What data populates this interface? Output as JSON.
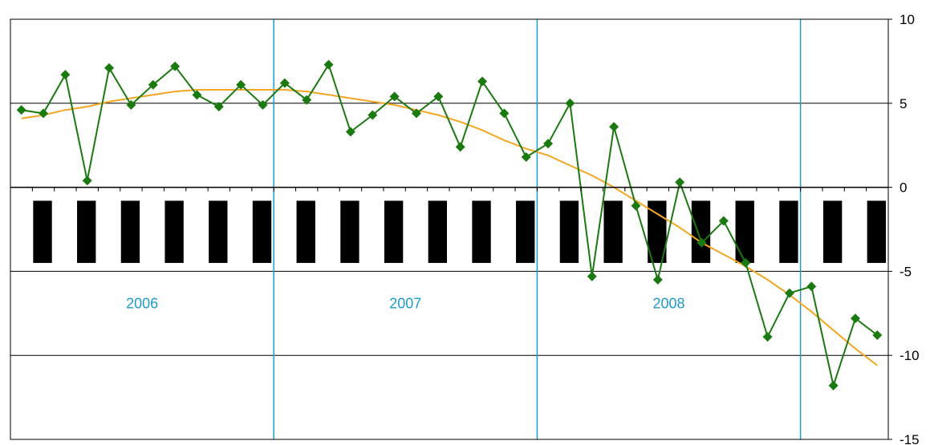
{
  "colors": {
    "background": "#ffffff",
    "border": "#000000",
    "gridline": "#000000",
    "year_divider": "#1f9bc9",
    "year_label": "#1f9bc9",
    "series_main": "#1a7a0f",
    "series_trend": "#f5a623",
    "band": "#000000"
  },
  "chart_data": {
    "type": "line",
    "title": "",
    "xlabel": "",
    "ylabel": "",
    "ylim": [
      -15,
      10
    ],
    "y_ticks": [
      "10",
      "5",
      "0",
      "-5",
      "-10",
      "-15"
    ],
    "y_tick_values": [
      10,
      5,
      0,
      -5,
      -10,
      -15
    ],
    "y_axis_side": "right",
    "grid": true,
    "legend": "none",
    "period_labels": [
      "2006",
      "2007",
      "2008"
    ],
    "period_dividers_after_month": [
      12,
      24,
      36
    ],
    "months_total": 40,
    "recession_band_ylim": [
      -4.5,
      -0.8
    ],
    "series": [
      {
        "values": [
          4.6,
          4.4,
          6.7,
          0.4,
          7.1,
          4.9,
          6.1,
          7.2,
          5.5,
          4.8,
          6.1,
          4.9,
          6.2,
          5.2,
          7.3,
          3.3,
          4.3,
          5.4,
          4.4,
          5.4,
          2.4,
          6.3,
          4.4,
          1.8,
          2.6,
          5.0,
          -5.3,
          3.6,
          -1.1,
          -5.5,
          0.3,
          -3.3,
          -2.0,
          -4.5,
          -8.9,
          -6.3,
          -5.9,
          -11.8,
          -7.8,
          -8.8
        ],
        "marker": "diamond"
      },
      {
        "values": [
          4.1,
          4.3,
          4.6,
          4.8,
          5.1,
          5.3,
          5.5,
          5.7,
          5.8,
          5.8,
          5.8,
          5.8,
          5.8,
          5.7,
          5.5,
          5.3,
          5.1,
          4.9,
          4.6,
          4.3,
          3.9,
          3.4,
          2.8,
          2.3,
          1.9,
          1.3,
          0.7,
          0.0,
          -0.8,
          -1.6,
          -2.4,
          -3.3,
          -4.0,
          -4.7,
          -5.5,
          -6.4,
          -7.4,
          -8.5,
          -9.6,
          -10.6
        ],
        "marker": "none"
      }
    ]
  }
}
